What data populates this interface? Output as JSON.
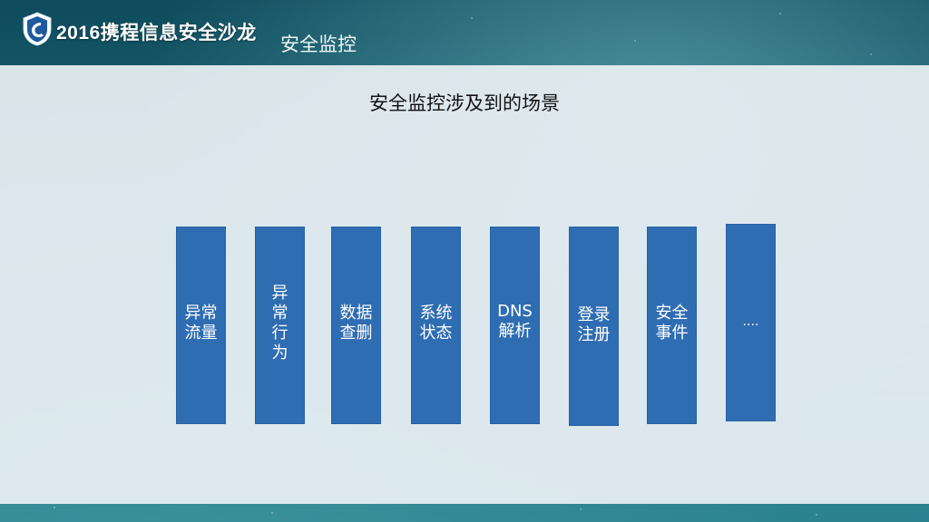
{
  "header": {
    "brand": "2016携程信息安全沙龙",
    "section_title": "安全监控"
  },
  "main": {
    "title": "安全监控涉及到的场景",
    "scenarios": [
      "异常\n流量",
      "异\n常\n行\n为",
      "数据\n查删",
      "系统\n状态",
      "DNS\n解析",
      "登录\n注册",
      "安全\n事件",
      "...."
    ]
  },
  "colors": {
    "box_fill": "#2f6db3",
    "panel": "#e9f0f4",
    "background": "#1f6d7c"
  }
}
